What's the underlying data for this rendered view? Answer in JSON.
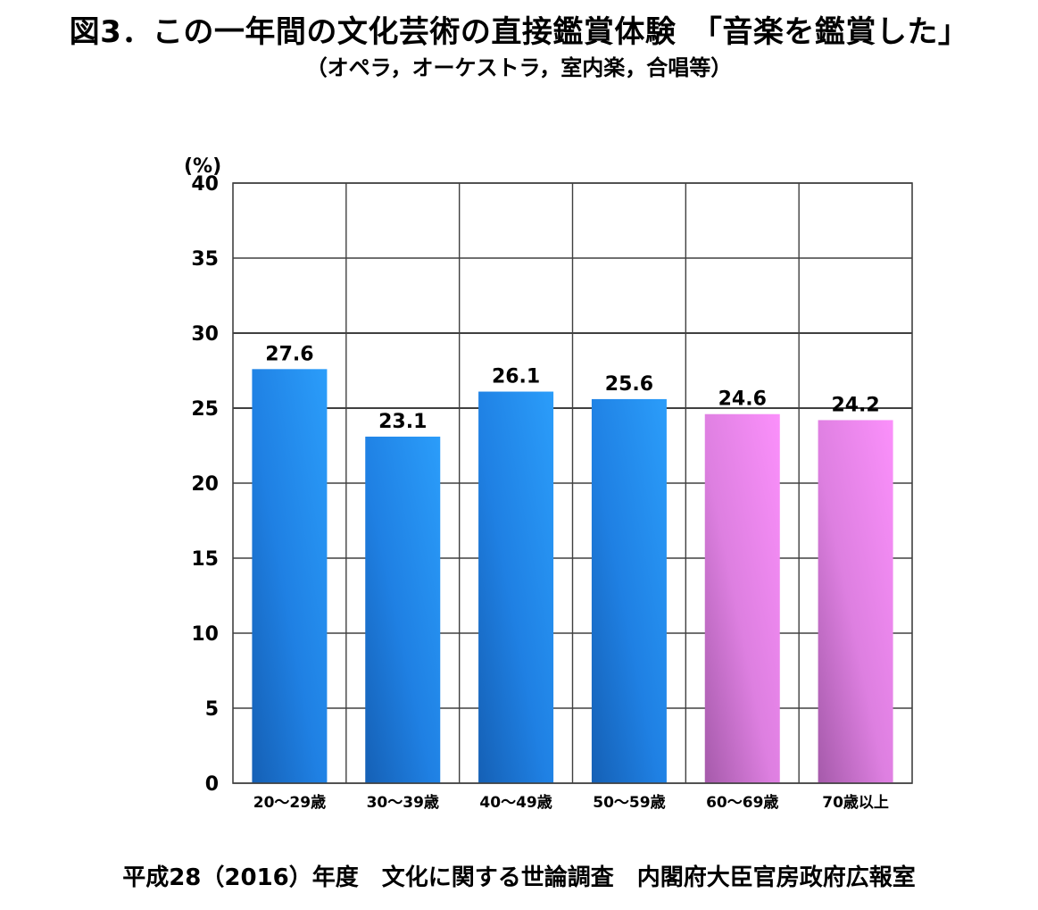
{
  "chart_data": {
    "type": "bar",
    "title": "図3．この一年間の文化芸術の直接鑑賞体験　「音楽を鑑賞した」",
    "subtitle": "（オペラ，オーケストラ，室内楽，合唱等）",
    "ylabel": "(%)",
    "xlabel": "",
    "categories": [
      "20～29歳",
      "30～39歳",
      "40～49歳",
      "50～59歳",
      "60～69歳",
      "70歳以上"
    ],
    "values": [
      27.6,
      23.1,
      26.1,
      25.6,
      24.6,
      24.2
    ],
    "value_labels": [
      "27.6",
      "23.1",
      "26.1",
      "25.6",
      "24.6",
      "24.2"
    ],
    "ylim": [
      0,
      40
    ],
    "yticks": [
      0,
      5,
      10,
      15,
      20,
      25,
      30,
      35,
      40
    ],
    "ytick_labels": [
      "0",
      "5",
      "10",
      "15",
      "20",
      "25",
      "30",
      "35",
      "40"
    ],
    "grid": true,
    "legend": "none",
    "bar_colors": [
      "#1e88e5",
      "#1e88e5",
      "#1e88e5",
      "#1e88e5",
      "#ee82ee",
      "#ee82ee"
    ],
    "source": "平成28（2016）年度　文化に関する世論調査　内閣府大臣官房政府広報室"
  }
}
